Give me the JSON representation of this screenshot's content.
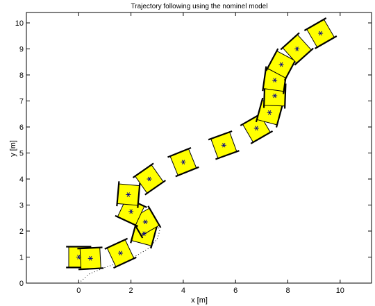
{
  "chart_data": {
    "type": "scatter",
    "title": "Trajectory following using the nominel model",
    "xlabel": "x [m]",
    "ylabel": "y [m]",
    "xlim": [
      -2,
      11.2
    ],
    "ylim": [
      0,
      10.4
    ],
    "xticks": [
      0,
      2,
      4,
      6,
      8,
      10
    ],
    "yticks": [
      0,
      1,
      2,
      3,
      4,
      5,
      6,
      7,
      8,
      9,
      10
    ],
    "grid": false,
    "colors": {
      "body_fill": "#ffff00",
      "outline": "#000000",
      "wheel": "#000000",
      "center_marker": "#00008b",
      "reference_path": "#000000"
    },
    "reference_path": {
      "x": [
        0,
        0.4,
        1.0,
        1.6,
        2.2,
        2.7,
        3.0,
        3.1,
        3.0,
        2.7,
        2.4,
        2.2
      ],
      "y": [
        0,
        0.35,
        0.6,
        0.8,
        1.05,
        1.35,
        1.7,
        2.0,
        2.3,
        2.55,
        2.8,
        3.0
      ]
    },
    "robot_poses": [
      {
        "x": 0.0,
        "y": 1.0,
        "heading_deg": 0
      },
      {
        "x": 0.45,
        "y": 0.95,
        "heading_deg": 3
      },
      {
        "x": 1.6,
        "y": 1.15,
        "heading_deg": 25
      },
      {
        "x": 2.5,
        "y": 1.9,
        "heading_deg": 75
      },
      {
        "x": 2.55,
        "y": 2.35,
        "heading_deg": 120
      },
      {
        "x": 2.0,
        "y": 2.75,
        "heading_deg": 155
      },
      {
        "x": 1.9,
        "y": 3.4,
        "heading_deg": 85
      },
      {
        "x": 2.7,
        "y": 4.0,
        "heading_deg": 35
      },
      {
        "x": 4.0,
        "y": 4.65,
        "heading_deg": 22
      },
      {
        "x": 5.55,
        "y": 5.3,
        "heading_deg": 20
      },
      {
        "x": 6.8,
        "y": 5.95,
        "heading_deg": 30
      },
      {
        "x": 7.3,
        "y": 6.55,
        "heading_deg": 75
      },
      {
        "x": 7.5,
        "y": 7.2,
        "heading_deg": 88
      },
      {
        "x": 7.5,
        "y": 7.8,
        "heading_deg": 82
      },
      {
        "x": 7.75,
        "y": 8.4,
        "heading_deg": 62
      },
      {
        "x": 8.35,
        "y": 9.0,
        "heading_deg": 42
      },
      {
        "x": 9.25,
        "y": 9.6,
        "heading_deg": 30
      }
    ]
  }
}
